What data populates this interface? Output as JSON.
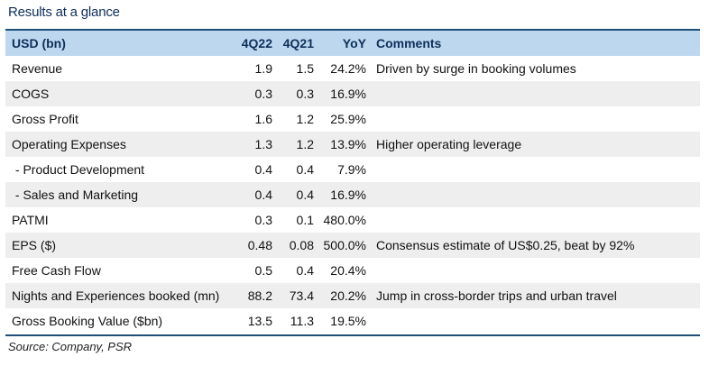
{
  "title": "Results at a glance",
  "table": {
    "headers": {
      "label": "USD (bn)",
      "q1": "4Q22",
      "q2": "4Q21",
      "yoy": "YoY",
      "comments": "Comments"
    },
    "rows": [
      {
        "label": "Revenue",
        "q1": "1.9",
        "q2": "1.5",
        "yoy": "24.2%",
        "comments": "Driven by surge in booking volumes"
      },
      {
        "label": "COGS",
        "q1": "0.3",
        "q2": "0.3",
        "yoy": "16.9%",
        "comments": ""
      },
      {
        "label": "Gross Profit",
        "q1": "1.6",
        "q2": "1.2",
        "yoy": "25.9%",
        "comments": ""
      },
      {
        "label": "Operating Expenses",
        "q1": "1.3",
        "q2": "1.2",
        "yoy": "13.9%",
        "comments": "Higher operating leverage"
      },
      {
        "label": " - Product Development",
        "q1": "0.4",
        "q2": "0.4",
        "yoy": "7.9%",
        "comments": ""
      },
      {
        "label": " - Sales and Marketing",
        "q1": "0.4",
        "q2": "0.4",
        "yoy": "16.9%",
        "comments": ""
      },
      {
        "label": "PATMI",
        "q1": "0.3",
        "q2": "0.1",
        "yoy": "480.0%",
        "comments": ""
      },
      {
        "label": "EPS ($)",
        "q1": "0.48",
        "q2": "0.08",
        "yoy": "500.0%",
        "comments": "Consensus estimate of US$0.25, beat by 92%"
      },
      {
        "label": "Free Cash Flow",
        "q1": "0.5",
        "q2": "0.4",
        "yoy": "20.4%",
        "comments": ""
      },
      {
        "label": "Nights and Experiences booked (mn)",
        "q1": "88.2",
        "q2": "73.4",
        "yoy": "20.2%",
        "comments": "Jump in cross-border trips and urban travel"
      },
      {
        "label": "Gross Booking Value ($bn)",
        "q1": "13.5",
        "q2": "11.3",
        "yoy": "19.5%",
        "comments": ""
      }
    ]
  },
  "source": "Source: Company, PSR"
}
